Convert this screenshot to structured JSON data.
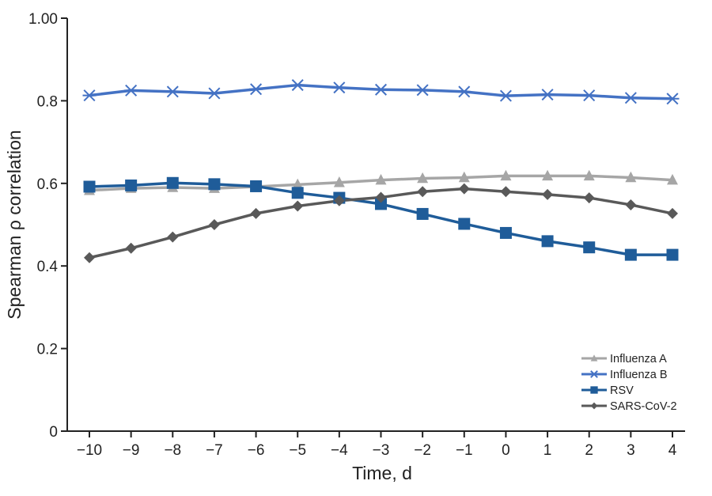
{
  "chart_data": {
    "type": "line",
    "xlabel": "Time, d",
    "ylabel": "Spearman ρ correlation",
    "x": [
      -10,
      -9,
      -8,
      -7,
      -6,
      -5,
      -4,
      -3,
      -2,
      -1,
      0,
      1,
      2,
      3,
      4
    ],
    "x_tick_labels": [
      "−10",
      "−9",
      "−8",
      "−7",
      "−6",
      "−5",
      "−4",
      "−3",
      "−2",
      "−1",
      "0",
      "1",
      "2",
      "3",
      "4"
    ],
    "ylim": [
      0,
      1
    ],
    "y_ticks": [
      0,
      0.2,
      0.4,
      0.6,
      0.8,
      1.0
    ],
    "y_tick_labels": [
      "0",
      "0.2",
      "0.4",
      "0.6",
      "0.8",
      "1.00"
    ],
    "grid": false,
    "legend_position": "bottom-right",
    "series": [
      {
        "name": "Influenza A",
        "color": "#a6a6a6",
        "marker": "triangle",
        "values": [
          0.583,
          0.588,
          0.59,
          0.588,
          0.592,
          0.597,
          0.602,
          0.608,
          0.612,
          0.614,
          0.618,
          0.618,
          0.618,
          0.614,
          0.608
        ]
      },
      {
        "name": "Influenza B",
        "color": "#4472c4",
        "marker": "asterisk",
        "values": [
          0.813,
          0.825,
          0.822,
          0.818,
          0.828,
          0.838,
          0.832,
          0.827,
          0.826,
          0.822,
          0.812,
          0.815,
          0.813,
          0.807,
          0.805
        ]
      },
      {
        "name": "RSV",
        "color": "#1f5c99",
        "marker": "square",
        "values": [
          0.592,
          0.595,
          0.601,
          0.598,
          0.593,
          0.577,
          0.565,
          0.55,
          0.526,
          0.502,
          0.48,
          0.46,
          0.445,
          0.427,
          0.427
        ]
      },
      {
        "name": "SARS-CoV-2",
        "color": "#595959",
        "marker": "diamond",
        "values": [
          0.42,
          0.443,
          0.47,
          0.5,
          0.527,
          0.545,
          0.558,
          0.566,
          0.58,
          0.587,
          0.58,
          0.573,
          0.565,
          0.548,
          0.527
        ]
      }
    ]
  }
}
